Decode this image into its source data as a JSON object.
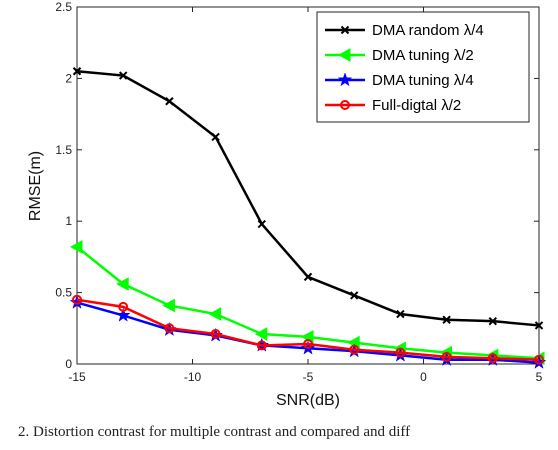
{
  "chart_data": {
    "type": "line",
    "xlabel": "SNR(dB)",
    "ylabel": "RMSE(m)",
    "xlim": [
      -15,
      5
    ],
    "ylim": [
      0,
      2.5
    ],
    "xticks": [
      "-15",
      "-10",
      "-5",
      "0",
      "5"
    ],
    "yticks": [
      "0",
      "0.5",
      "1",
      "1.5",
      "2",
      "2.5"
    ],
    "legend_position": "top-right",
    "grid": false,
    "x": [
      -15,
      -13,
      -11,
      -9,
      -7,
      -5,
      -3,
      -1,
      1,
      3,
      5
    ],
    "series": [
      {
        "name": "DMA random λ/4",
        "color": "#000000",
        "marker": "x",
        "values": [
          2.05,
          2.02,
          1.84,
          1.59,
          0.98,
          0.61,
          0.48,
          0.35,
          0.31,
          0.3,
          0.27
        ]
      },
      {
        "name": "DMA tuning λ/2",
        "color": "#00ff00",
        "marker": "triangle-left",
        "values": [
          0.82,
          0.56,
          0.41,
          0.35,
          0.21,
          0.19,
          0.15,
          0.11,
          0.08,
          0.06,
          0.04
        ]
      },
      {
        "name": "DMA tuning λ/4",
        "color": "#0000ff",
        "marker": "star",
        "values": [
          0.43,
          0.34,
          0.24,
          0.2,
          0.13,
          0.11,
          0.09,
          0.06,
          0.03,
          0.03,
          0.01
        ]
      },
      {
        "name": "Full-digtal λ/2",
        "color": "#ff0000",
        "marker": "circle",
        "values": [
          0.45,
          0.4,
          0.25,
          0.21,
          0.13,
          0.14,
          0.1,
          0.08,
          0.05,
          0.04,
          0.03
        ]
      }
    ]
  },
  "caption": "2.  Distortion  contrast  for  multiple  contrast  and  compared  and  diff"
}
